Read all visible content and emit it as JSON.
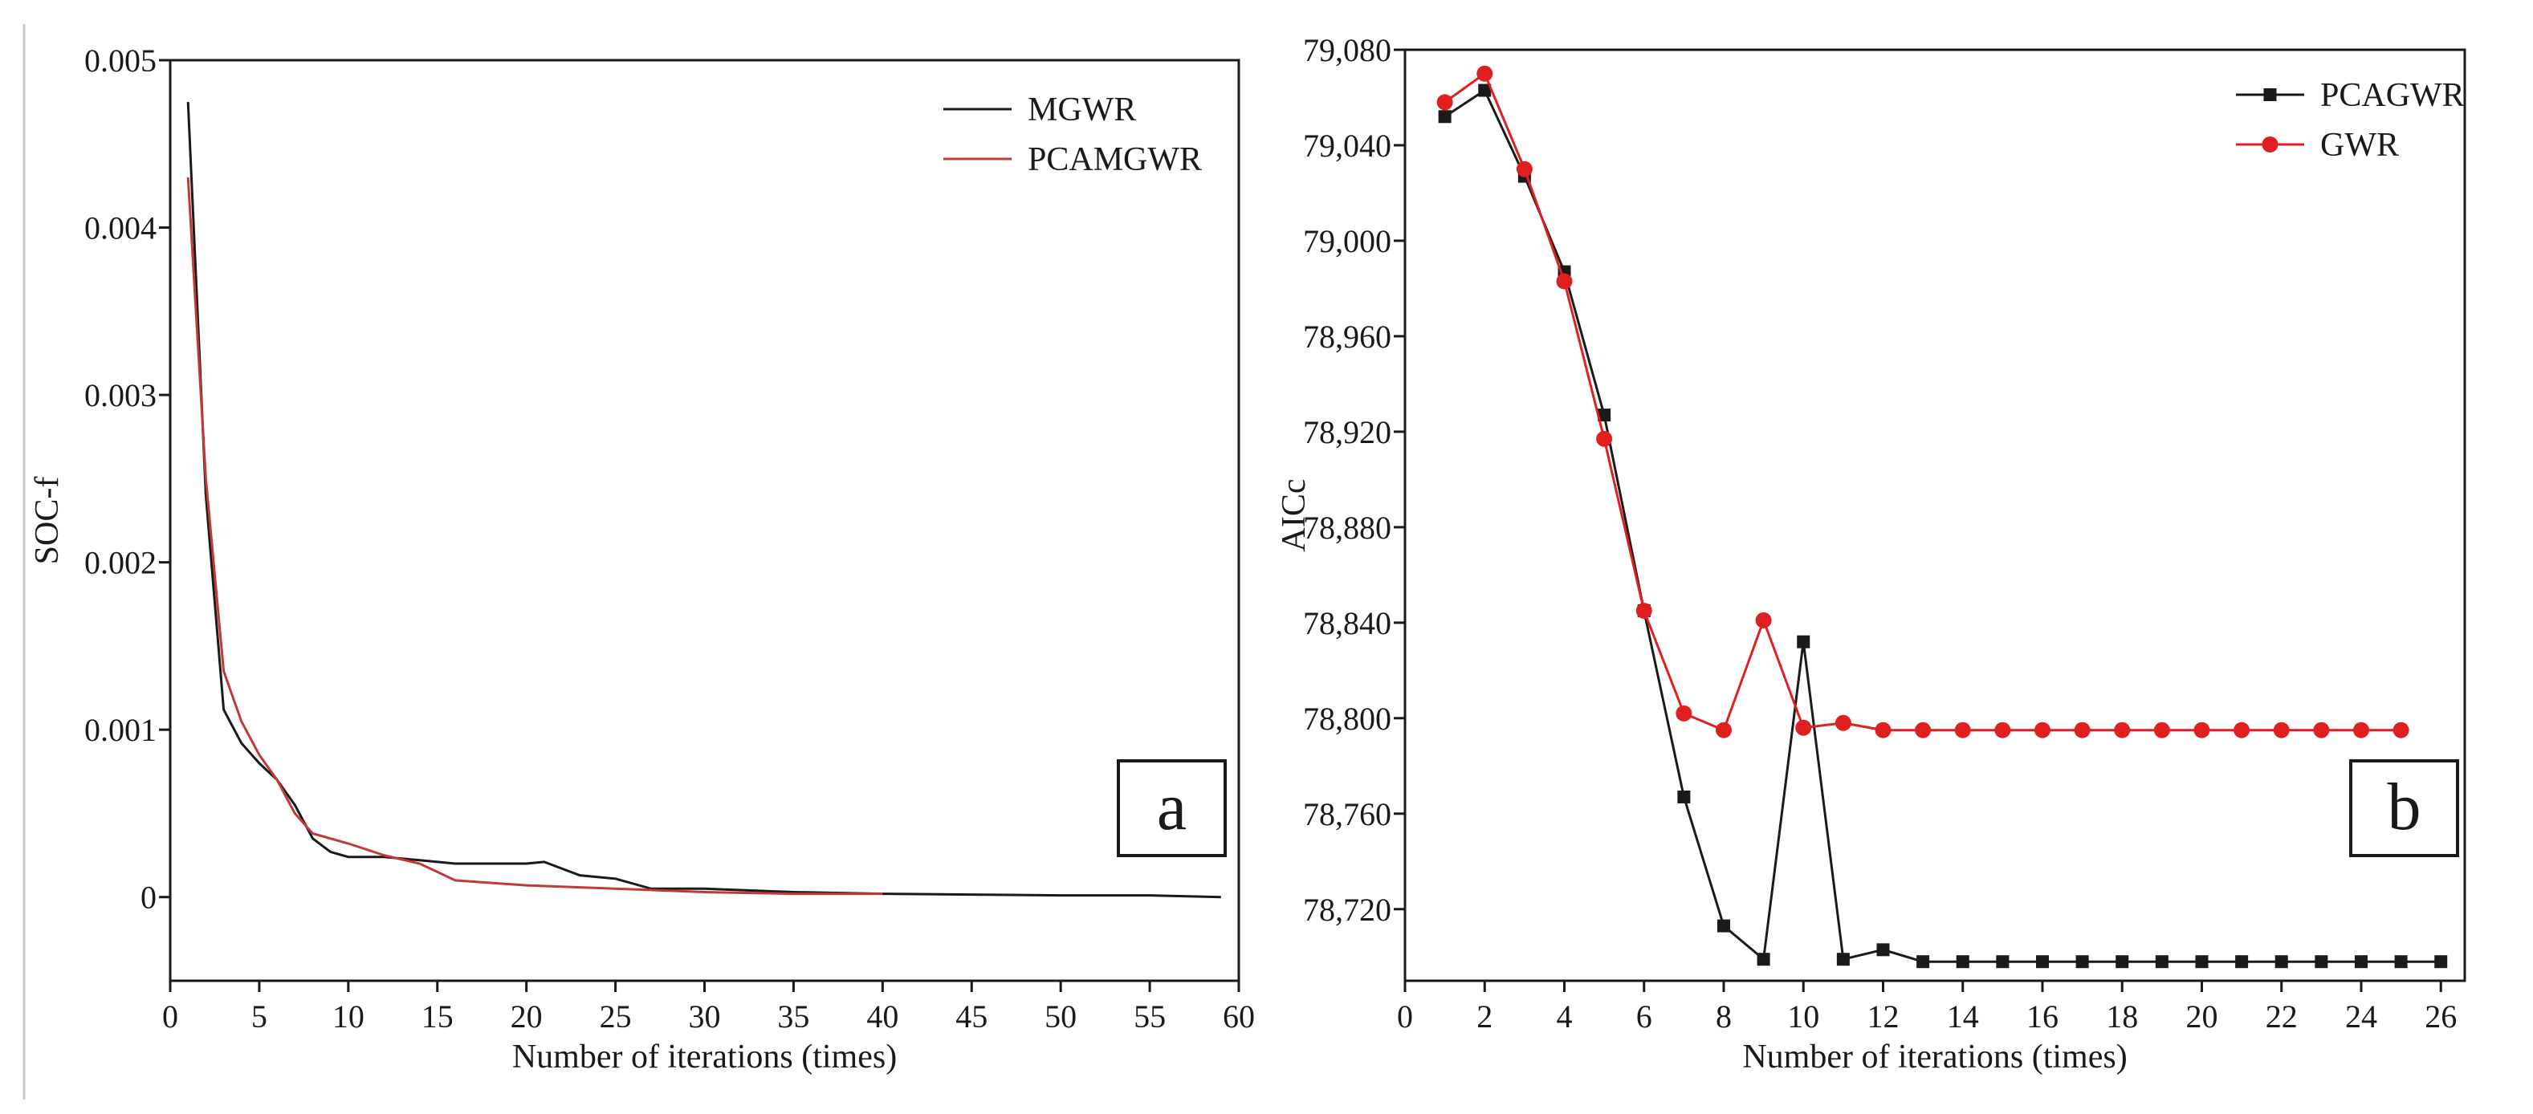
{
  "chart_data": [
    {
      "type": "line",
      "panel_label": "a",
      "xlabel": "Number of iterations (times)",
      "ylabel": "SOC-f",
      "xlim": [
        0,
        60
      ],
      "ylim": [
        -0.0005,
        0.005
      ],
      "x_ticks": [
        0,
        5,
        10,
        15,
        20,
        25,
        30,
        35,
        40,
        45,
        50,
        55,
        60
      ],
      "y_ticks": [
        0,
        0.001,
        0.002,
        0.003,
        0.004,
        0.005
      ],
      "y_tick_labels": [
        "0",
        "0.001",
        "0.002",
        "0.003",
        "0.004",
        "0.005"
      ],
      "legend_position": "top-right",
      "grid": false,
      "series": [
        {
          "name": "MGWR",
          "color": "#1a1a1a",
          "x": [
            1,
            2,
            3,
            4,
            5,
            6,
            7,
            8,
            9,
            10,
            12,
            14,
            16,
            18,
            20,
            21,
            23,
            25,
            27,
            30,
            35,
            40,
            45,
            50,
            55,
            59
          ],
          "y": [
            0.00475,
            0.0024,
            0.00112,
            0.00092,
            0.0008,
            0.0007,
            0.00055,
            0.00035,
            0.00027,
            0.00024,
            0.00024,
            0.00022,
            0.0002,
            0.0002,
            0.0002,
            0.00021,
            0.00013,
            0.00011,
            5e-05,
            5e-05,
            3e-05,
            2e-05,
            1.5e-05,
            1e-05,
            1e-05,
            0.0
          ]
        },
        {
          "name": "PCAMGWR",
          "color": "#c0393b",
          "x": [
            1,
            2,
            3,
            4,
            5,
            6,
            7,
            8,
            10,
            12,
            14,
            15,
            16,
            20,
            25,
            30,
            35,
            40
          ],
          "y": [
            0.0043,
            0.0025,
            0.00135,
            0.00105,
            0.00085,
            0.0007,
            0.0005,
            0.00038,
            0.00032,
            0.00025,
            0.0002,
            0.00015,
            0.0001,
            7e-05,
            5e-05,
            3e-05,
            2e-05,
            2e-05
          ]
        }
      ]
    },
    {
      "type": "line",
      "panel_label": "b",
      "xlabel": "Number of iterations (times)",
      "ylabel": "AICc",
      "xlim": [
        0,
        26.6
      ],
      "ylim": [
        78690,
        79080
      ],
      "x_ticks": [
        0,
        2,
        4,
        6,
        8,
        10,
        12,
        14,
        16,
        18,
        20,
        22,
        24,
        26
      ],
      "y_ticks": [
        78720,
        78760,
        78800,
        78840,
        78880,
        78920,
        78960,
        79000,
        79040,
        79080
      ],
      "y_tick_labels": [
        "78,720",
        "78,760",
        "78,800",
        "78,840",
        "78,880",
        "78,920",
        "78,960",
        "79,000",
        "79,040",
        "79,080"
      ],
      "legend_position": "top-right",
      "grid": false,
      "series": [
        {
          "name": "PCAGWR",
          "color": "#1a1a1a",
          "marker": "square",
          "x": [
            1,
            2,
            3,
            4,
            5,
            6,
            7,
            8,
            9,
            10,
            11,
            12,
            13,
            14,
            15,
            16,
            17,
            18,
            19,
            20,
            21,
            22,
            23,
            24,
            25,
            26
          ],
          "y": [
            79052,
            79063,
            79027,
            78987,
            78927,
            78845,
            78767,
            78713,
            78699,
            78832,
            78699,
            78703,
            78698,
            78698,
            78698,
            78698,
            78698,
            78698,
            78698,
            78698,
            78698,
            78698,
            78698,
            78698,
            78698,
            78698
          ]
        },
        {
          "name": "GWR",
          "color": "#e02020",
          "marker": "circle",
          "x": [
            1,
            2,
            3,
            4,
            5,
            6,
            7,
            8,
            9,
            10,
            11,
            12,
            13,
            14,
            15,
            16,
            17,
            18,
            19,
            20,
            21,
            22,
            23,
            24,
            25
          ],
          "y": [
            79058,
            79070,
            79030,
            78983,
            78917,
            78845,
            78802,
            78795,
            78841,
            78796,
            78798,
            78795,
            78795,
            78795,
            78795,
            78795,
            78795,
            78795,
            78795,
            78795,
            78795,
            78795,
            78795,
            78795,
            78795
          ]
        }
      ]
    }
  ]
}
